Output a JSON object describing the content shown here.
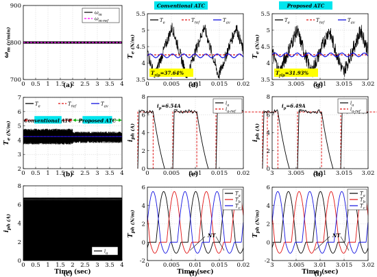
{
  "captions": [
    "(a)",
    "(b)",
    "(c)",
    "(d)",
    "(e)",
    "(f)",
    "(g)",
    "(h)",
    "(i)"
  ],
  "titles": {
    "conventional": "Conventional ATC",
    "proposed": "Proposed ATC"
  },
  "colors": {
    "black": "#000000",
    "red": "#e01010",
    "blue": "#1010e0",
    "magenta": "#ff00ff",
    "cyan": "#00e5ee",
    "yellow": "#ffff00"
  },
  "chart_data": [
    {
      "id": "a",
      "type": "line",
      "ylabel": "ω_m (r/min)",
      "xlabel": "",
      "xlim": [
        0,
        4
      ],
      "ylim": [
        700,
        900
      ],
      "xticks": [
        "0",
        "0.5",
        "1",
        "1.5",
        "2",
        "2.5",
        "3",
        "3.5",
        "4"
      ],
      "yticks": [
        "700",
        "800",
        "900"
      ],
      "legend": [
        "ω_m",
        "ω_m-ref"
      ],
      "series": [
        {
          "name": "ω_m",
          "value": 800
        },
        {
          "name": "ω_m-ref",
          "value": 800
        }
      ],
      "caption": "(a)"
    },
    {
      "id": "b",
      "type": "line",
      "ylabel": "T_e (N/m)",
      "xlabel": "",
      "xlim": [
        0,
        4
      ],
      "ylim": [
        2,
        7
      ],
      "xticks": [
        "0",
        "0.5",
        "1",
        "1.5",
        "2",
        "2.5",
        "3",
        "3.5",
        "4"
      ],
      "yticks": [
        "2",
        "3",
        "4",
        "5",
        "6",
        "7"
      ],
      "legend": [
        "T_e",
        "T_ref",
        "T_av"
      ],
      "annotations": [
        "Conventional ATC",
        "Proposed ATC"
      ],
      "series": [
        {
          "name": "T_e",
          "band": [
            [
              0,
              2,
              3.7,
              4.8
            ],
            [
              2,
              4,
              3.8,
              4.6
            ]
          ]
        },
        {
          "name": "T_ref",
          "value": 4.25
        },
        {
          "name": "T_av",
          "value": 4.25
        }
      ],
      "caption": "(b)"
    },
    {
      "id": "c",
      "type": "line",
      "ylabel": "i_ph (A)",
      "xlabel": "Time (sec)",
      "xlim": [
        0,
        4
      ],
      "ylim": [
        0,
        8
      ],
      "xticks": [
        "0",
        "0.5",
        "1",
        "1.5",
        "2",
        "2.5",
        "3",
        "3.5",
        "4"
      ],
      "yticks": [
        "0",
        "2",
        "4",
        "6",
        "8"
      ],
      "legend": [
        "i_a"
      ],
      "series": [
        {
          "name": "i_a",
          "band": [
            0,
            6.5
          ]
        }
      ],
      "caption": "(c)"
    },
    {
      "id": "d",
      "type": "line",
      "title": "Conventional ATC",
      "ylabel": "T_e (N/m)",
      "xlabel": "",
      "xlim": [
        0,
        0.02
      ],
      "ylim": [
        3.5,
        5.5
      ],
      "xticks": [
        "0",
        "0.005",
        "0.01",
        "0.015",
        "0.02"
      ],
      "yticks": [
        "3.5",
        "4",
        "4.5",
        "5",
        "5.5"
      ],
      "legend": [
        "T_e",
        "T_ref",
        "T_av"
      ],
      "annotation": "T_rip=37.64%",
      "series": [
        {
          "name": "T_e",
          "period": 0.00667,
          "min": 3.6,
          "max": 5.1
        },
        {
          "name": "T_ref",
          "value": 4.25
        },
        {
          "name": "T_av",
          "value": 4.22
        }
      ],
      "caption": "(d)"
    },
    {
      "id": "e",
      "type": "line",
      "ylabel": "i_ph (A)",
      "xlabel": "",
      "xlim": [
        0,
        0.02
      ],
      "ylim": [
        0,
        8
      ],
      "xticks": [
        "0",
        "0.005",
        "0.01",
        "0.015",
        "0.02"
      ],
      "yticks": [
        "0",
        "2",
        "4",
        "6",
        "8"
      ],
      "legend": [
        "i_a",
        "i_a-ref"
      ],
      "annotation": "i_p=6.54A",
      "series": [
        {
          "name": "i_a",
          "peak": 6.54
        },
        {
          "name": "i_a-ref",
          "value": 6.3
        }
      ],
      "caption": "(e)"
    },
    {
      "id": "f",
      "type": "line",
      "ylabel": "T_ph (N/m)",
      "xlabel": "Time (sec)",
      "xlim": [
        0,
        0.02
      ],
      "ylim": [
        -2,
        6
      ],
      "xticks": [
        "0",
        "0.005",
        "0.01",
        "0.015",
        "0.02"
      ],
      "yticks": [
        "-2",
        "0",
        "2",
        "4",
        "6"
      ],
      "legend": [
        "T_a",
        "T_b",
        "T_c"
      ],
      "annotation": "NT",
      "series": [
        {
          "name": "T_a",
          "peak": 5.5
        },
        {
          "name": "T_b",
          "peak": 5.5
        },
        {
          "name": "T_c",
          "peak": 5.5
        }
      ],
      "caption": "(f)"
    },
    {
      "id": "g",
      "type": "line",
      "title": "Proposed ATC",
      "ylabel": "T_e (N/m)",
      "xlabel": "",
      "xlim": [
        3,
        3.02
      ],
      "ylim": [
        3.5,
        5.5
      ],
      "xticks": [
        "3",
        "3.005",
        "3.01",
        "3.015",
        "3.02"
      ],
      "yticks": [
        "3.5",
        "4",
        "4.5",
        "5",
        "5.5"
      ],
      "legend": [
        "T_e",
        "T_ref",
        "T_av"
      ],
      "annotation": "T_rip=31.93%",
      "series": [
        {
          "name": "T_e",
          "period": 0.00667,
          "min": 3.7,
          "max": 5.0
        },
        {
          "name": "T_ref",
          "value": 4.25
        },
        {
          "name": "T_av",
          "value": 4.25
        }
      ],
      "caption": "(g)"
    },
    {
      "id": "h",
      "type": "line",
      "ylabel": "i_ph (A)",
      "xlabel": "",
      "xlim": [
        3,
        3.02
      ],
      "ylim": [
        0,
        8
      ],
      "xticks": [
        "3",
        "3.005",
        "3.01",
        "3.015",
        "3.02"
      ],
      "yticks": [
        "0",
        "2",
        "4",
        "6",
        "8"
      ],
      "legend": [
        "i_a",
        "i_a-ref"
      ],
      "annotation": "i_p=6.49A",
      "series": [
        {
          "name": "i_a",
          "peak": 6.49
        },
        {
          "name": "i_a-ref",
          "value": 6.3
        }
      ],
      "caption": "(h)"
    },
    {
      "id": "i",
      "type": "line",
      "ylabel": "T_ph (N/m)",
      "xlabel": "Time (sec)",
      "xlim": [
        3,
        3.02
      ],
      "ylim": [
        -2,
        6
      ],
      "xticks": [
        "3",
        "3.005",
        "3.01",
        "3.015",
        "3.02"
      ],
      "yticks": [
        "-2",
        "0",
        "2",
        "4",
        "6"
      ],
      "legend": [
        "T_a",
        "T_b",
        "T_c"
      ],
      "annotation": "NT",
      "series": [
        {
          "name": "T_a",
          "peak": 5.5
        },
        {
          "name": "T_b",
          "peak": 5.5
        },
        {
          "name": "T_c",
          "peak": 5.5
        }
      ],
      "caption": "(i)"
    }
  ]
}
